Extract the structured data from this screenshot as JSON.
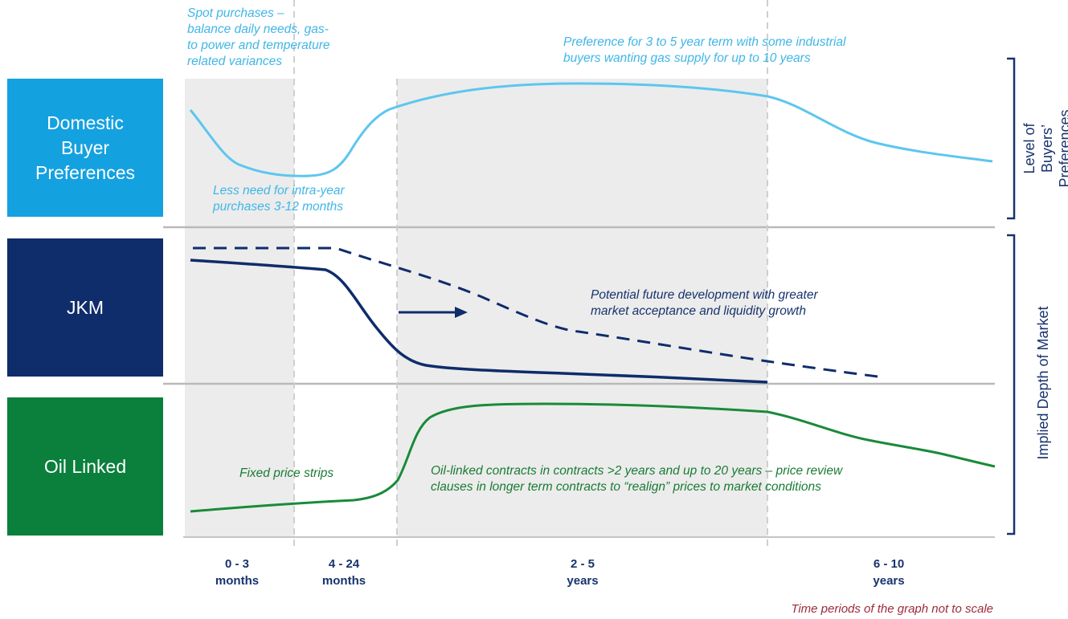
{
  "rows": {
    "domestic": "Domestic\nBuyer\nPreferences",
    "jkm": "JKM",
    "oil": "Oil Linked"
  },
  "annotations": {
    "spot": "Spot purchases –\nbalance daily needs, gas-\nto power and temperature\nrelated variances",
    "preference": "Preference for 3 to 5 year term with some industrial\nbuyers wanting gas supply for up to 10 years",
    "less_need": "Less need for intra-year\npurchases 3-12 months",
    "potential": "Potential future development with greater\nmarket acceptance and liquidity growth",
    "fixed": "Fixed price strips",
    "oil_linked": "Oil-linked contracts in contracts >2 years and up to 20 years – price review\nclauses in longer term contracts to “realign” prices to market conditions"
  },
  "x_ticks": [
    "0 - 3\nmonths",
    "4 - 24\nmonths",
    "2 - 5\nyears",
    "6 - 10\nyears"
  ],
  "axis_labels": {
    "top": "Level of Buyers’\nPreferences",
    "bottom": "Implied Depth of Market"
  },
  "note": "Time periods of the graph not to scale",
  "colors": {
    "domestic": "#14a1e0",
    "jkm": "#0f2c6b",
    "oil": "#0b7f3c",
    "shade": "#ececec",
    "note": "#9e2a3a"
  }
}
